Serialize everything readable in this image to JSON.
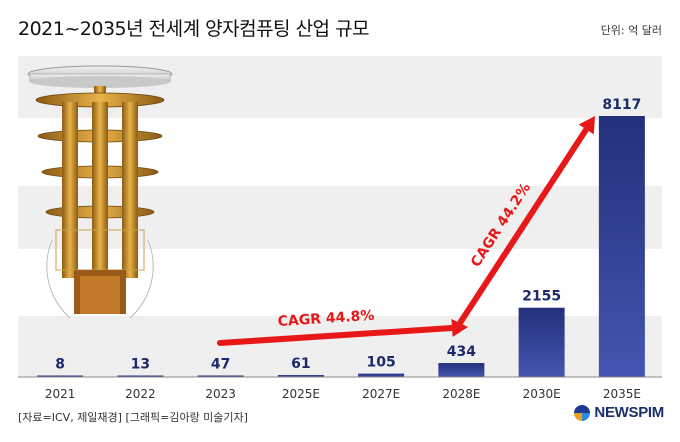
{
  "header": {
    "title": "2021~2035년 전세계 양자컴퓨팅 산업 규모",
    "unit": "단위: 억 달러"
  },
  "footer": {
    "source": "[자료=ICV, 제일재경] [그래픽=김아랑 미술기자]",
    "logo_text": "NEWSPIM"
  },
  "chart_data": {
    "type": "bar",
    "categories": [
      "2021",
      "2022",
      "2023",
      "2025E",
      "2027E",
      "2028E",
      "2030E",
      "2035E"
    ],
    "values": [
      8,
      13,
      47,
      61,
      105,
      434,
      2155,
      8117
    ],
    "data_labels": [
      "8",
      "13",
      "47",
      "61",
      "105",
      "434",
      "2155",
      "8117"
    ],
    "annotations": [
      "CAGR 44.8%",
      "CAGR 44.2%"
    ],
    "ylim": [
      0,
      8117
    ],
    "colors": {
      "bar": "#23307a",
      "bar_light": "#4655b0",
      "arrow": "#e81818",
      "band": "#efefef"
    }
  }
}
